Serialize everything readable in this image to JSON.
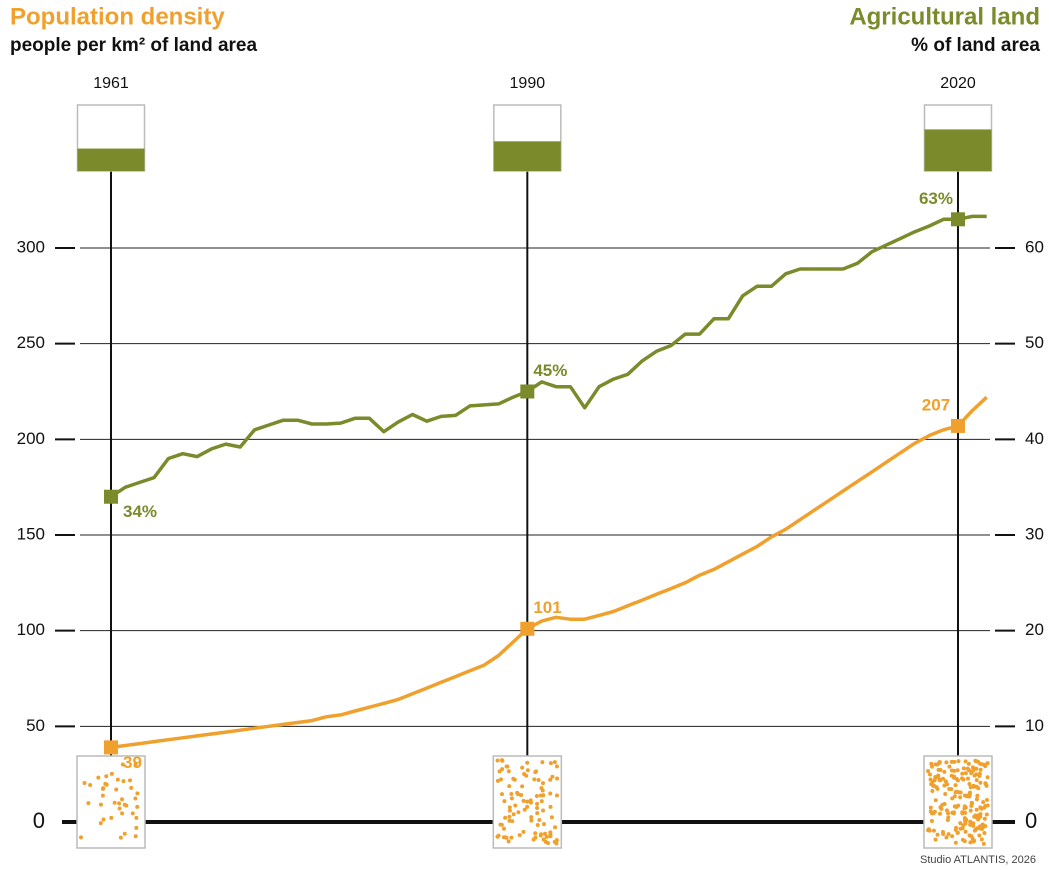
{
  "chart_data": {
    "type": "line",
    "title": "Population density",
    "subtitle": "people per km² of land area",
    "title_right": "Agricultural land",
    "subtitle_right": "% of land area",
    "source": "Studio ATLANTIS, 2026",
    "x": [
      1961,
      1962,
      1963,
      1964,
      1965,
      1966,
      1967,
      1968,
      1969,
      1970,
      1971,
      1972,
      1973,
      1974,
      1975,
      1976,
      1977,
      1978,
      1979,
      1980,
      1981,
      1982,
      1983,
      1984,
      1985,
      1986,
      1987,
      1988,
      1989,
      1990,
      1991,
      1992,
      1993,
      1994,
      1995,
      1996,
      1997,
      1998,
      1999,
      2000,
      2001,
      2002,
      2003,
      2004,
      2005,
      2006,
      2007,
      2008,
      2009,
      2010,
      2011,
      2012,
      2013,
      2014,
      2015,
      2016,
      2017,
      2018,
      2019,
      2020,
      2021,
      2022
    ],
    "xlim": [
      1961,
      2022
    ],
    "xticks": [
      1961,
      1990,
      2020
    ],
    "ylim": [
      0,
      330
    ],
    "yticks": [
      0,
      50,
      100,
      150,
      200,
      250,
      300
    ],
    "y2lim": [
      0,
      66
    ],
    "y2ticks": [
      0,
      10,
      20,
      30,
      40,
      50,
      60
    ],
    "series": [
      {
        "name": "Population density",
        "color": "#f0a02c",
        "values": [
          39,
          40,
          41,
          42,
          43,
          44,
          45,
          46,
          47,
          48,
          49,
          50,
          51,
          52,
          53,
          55,
          56,
          58,
          60,
          62,
          64,
          67,
          70,
          73,
          76,
          79,
          82,
          87,
          94,
          101,
          105,
          107,
          106,
          106,
          108,
          110,
          113,
          116,
          119,
          122,
          125,
          129,
          132,
          136,
          140,
          144,
          149,
          153,
          158,
          163,
          168,
          173,
          178,
          183,
          188,
          193,
          198,
          202,
          205,
          207,
          215,
          222
        ],
        "value_labels": [
          "39",
          null,
          null,
          null,
          null,
          null,
          null,
          null,
          null,
          null,
          null,
          null,
          null,
          null,
          null,
          null,
          null,
          null,
          null,
          null,
          null,
          null,
          null,
          null,
          null,
          null,
          null,
          null,
          null,
          "101",
          null,
          null,
          null,
          null,
          null,
          null,
          null,
          null,
          null,
          null,
          null,
          null,
          null,
          null,
          null,
          null,
          null,
          null,
          null,
          null,
          null,
          null,
          null,
          null,
          null,
          null,
          null,
          null,
          null,
          "207",
          null,
          null
        ]
      },
      {
        "name": "Agricultural land",
        "color": "#7b8a2a",
        "axis": "y2",
        "values": [
          34,
          35,
          35.5,
          36,
          38,
          38.5,
          38.2,
          39,
          39.5,
          39.2,
          41,
          41.5,
          42,
          42,
          41.6,
          41.6,
          41.7,
          42.2,
          42.2,
          40.8,
          41.8,
          42.6,
          41.9,
          42.4,
          42.5,
          43.5,
          43.6,
          43.7,
          44.4,
          45,
          46,
          45.5,
          45.5,
          43.3,
          45.5,
          46.3,
          46.8,
          48.2,
          49.2,
          49.8,
          51,
          51,
          52.6,
          52.6,
          55,
          56,
          56,
          57.3,
          57.8,
          57.8,
          57.8,
          57.8,
          58.4,
          59.6,
          60.3,
          61,
          61.7,
          62.3,
          63,
          63,
          63.3,
          63.3
        ],
        "value_labels": [
          "34%",
          null,
          null,
          null,
          null,
          null,
          null,
          null,
          null,
          null,
          null,
          null,
          null,
          null,
          null,
          null,
          null,
          null,
          null,
          null,
          null,
          null,
          null,
          null,
          null,
          null,
          null,
          null,
          null,
          "45%",
          null,
          null,
          null,
          null,
          null,
          null,
          null,
          null,
          null,
          null,
          null,
          null,
          null,
          null,
          null,
          null,
          null,
          null,
          null,
          null,
          null,
          null,
          null,
          null,
          null,
          null,
          null,
          null,
          null,
          "63%",
          null,
          null
        ]
      }
    ]
  }
}
